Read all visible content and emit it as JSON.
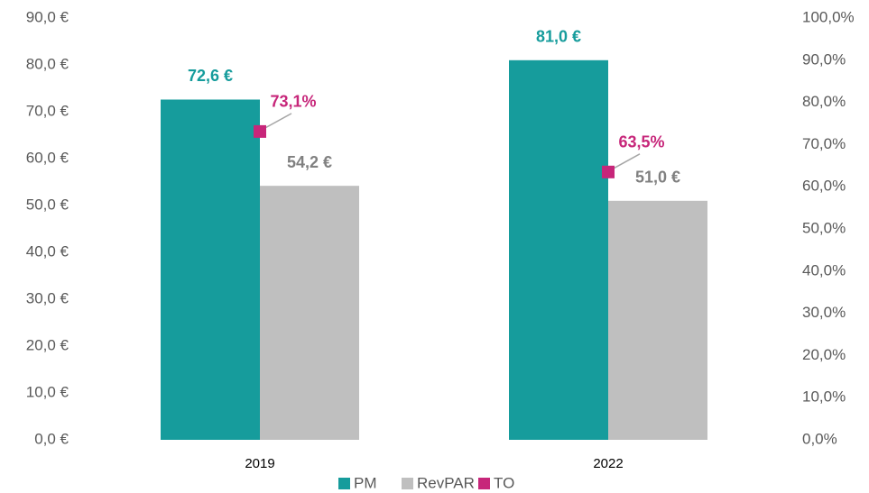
{
  "chart_data": {
    "type": "bar",
    "categories": [
      "2019",
      "2022"
    ],
    "series": [
      {
        "name": "PM",
        "type": "bar",
        "color": "#169c9c",
        "label_color": "#169c9c",
        "values": [
          72.6,
          81.0
        ],
        "value_labels": [
          "72,6 €",
          "81,0 €"
        ]
      },
      {
        "name": "RevPAR",
        "type": "bar",
        "color": "#bfbfbf",
        "label_color": "#808080",
        "values": [
          54.2,
          51.0
        ],
        "value_labels": [
          "54,2 €",
          "51,0 €"
        ]
      },
      {
        "name": "TO",
        "type": "marker",
        "axis": "y2",
        "color": "#c7267a",
        "label_color": "#c7267a",
        "values": [
          73.1,
          63.5
        ],
        "value_labels": [
          "73,1%",
          "63,5%"
        ]
      }
    ],
    "ylim": [
      0,
      90
    ],
    "yticks": [
      {
        "value": 0,
        "label": "0,0 €"
      },
      {
        "value": 10,
        "label": "10,0 €"
      },
      {
        "value": 20,
        "label": "20,0 €"
      },
      {
        "value": 30,
        "label": "30,0 €"
      },
      {
        "value": 40,
        "label": "40,0 €"
      },
      {
        "value": 50,
        "label": "50,0 €"
      },
      {
        "value": 60,
        "label": "60,0 €"
      },
      {
        "value": 70,
        "label": "70,0 €"
      },
      {
        "value": 80,
        "label": "80,0 €"
      },
      {
        "value": 90,
        "label": "90,0 €"
      }
    ],
    "y2lim": [
      0,
      100
    ],
    "y2ticks": [
      {
        "value": 0,
        "label": "0,0%"
      },
      {
        "value": 10,
        "label": "10,0%"
      },
      {
        "value": 20,
        "label": "20,0%"
      },
      {
        "value": 30,
        "label": "30,0%"
      },
      {
        "value": 40,
        "label": "40,0%"
      },
      {
        "value": 50,
        "label": "50,0%"
      },
      {
        "value": 60,
        "label": "60,0%"
      },
      {
        "value": 70,
        "label": "70,0%"
      },
      {
        "value": 80,
        "label": "80,0%"
      },
      {
        "value": 90,
        "label": "90,0%"
      },
      {
        "value": 100,
        "label": "100,0%"
      }
    ],
    "grid": false,
    "legend": "bottom"
  }
}
